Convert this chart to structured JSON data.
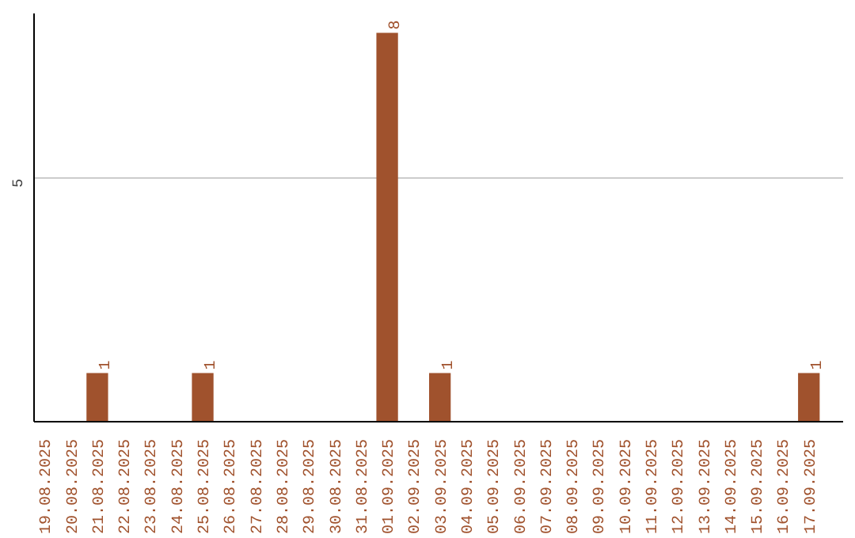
{
  "chart_data": {
    "type": "bar",
    "categories": [
      "19.08.2025",
      "20.08.2025",
      "21.08.2025",
      "22.08.2025",
      "23.08.2025",
      "24.08.2025",
      "25.08.2025",
      "26.08.2025",
      "27.08.2025",
      "28.08.2025",
      "29.08.2025",
      "30.08.2025",
      "31.08.2025",
      "01.09.2025",
      "02.09.2025",
      "03.09.2025",
      "04.09.2025",
      "05.09.2025",
      "06.09.2025",
      "07.09.2025",
      "08.09.2025",
      "09.09.2025",
      "10.09.2025",
      "11.09.2025",
      "12.09.2025",
      "13.09.2025",
      "14.09.2025",
      "15.09.2025",
      "16.09.2025",
      "17.09.2025"
    ],
    "values": [
      0,
      0,
      1,
      0,
      0,
      0,
      1,
      0,
      0,
      0,
      0,
      0,
      0,
      8,
      0,
      1,
      0,
      0,
      0,
      0,
      0,
      0,
      0,
      0,
      0,
      0,
      0,
      0,
      0,
      1
    ],
    "value_labels": [
      null,
      null,
      "1",
      null,
      null,
      null,
      "1",
      null,
      null,
      null,
      null,
      null,
      null,
      "8",
      null,
      "1",
      null,
      null,
      null,
      null,
      null,
      null,
      null,
      null,
      null,
      null,
      null,
      null,
      null,
      "1"
    ],
    "color": "#a0522d",
    "ylim": [
      0,
      8.4
    ],
    "yticks": [
      5
    ],
    "grid": "y"
  }
}
